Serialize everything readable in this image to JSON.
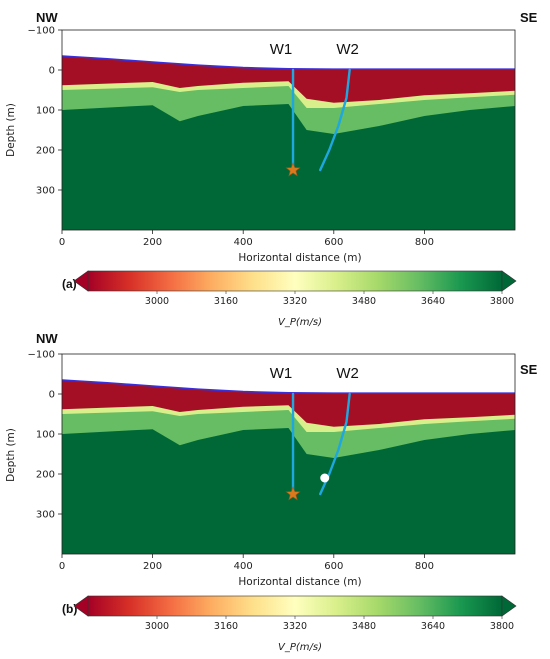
{
  "colors": {
    "low_velocity": "#a50f26",
    "transition": "#d9ef8b",
    "mid_green": "#66bd63",
    "high_green": "#1a9850",
    "deep_green": "#006837",
    "well_line": "#1ea8e0",
    "star": "#d97a1e",
    "topography": "#3a2fd8"
  },
  "chart_data": [
    {
      "type": "heatmap",
      "panel_label": "(a)",
      "corner_left": "NW",
      "corner_right": "SE",
      "xlabel": "Horizontal distance (m)",
      "ylabel": "Depth (m)",
      "xlim": [
        0,
        1000
      ],
      "ylim": [
        -100,
        400
      ],
      "y_inverted": true,
      "x_ticks": [
        "0",
        "200",
        "400",
        "600",
        "800"
      ],
      "y_ticks": [
        "−100",
        "0",
        "100",
        "200",
        "300"
      ],
      "wells": [
        {
          "name": "W1",
          "path": [
            [
              510,
              0
            ],
            [
              510,
              250
            ]
          ],
          "marker": "star",
          "marker_at": [
            510,
            250
          ]
        },
        {
          "name": "W2",
          "path": [
            [
              635,
              0
            ],
            [
              628,
              70
            ],
            [
              610,
              140
            ],
            [
              590,
              200
            ],
            [
              570,
              250
            ]
          ]
        }
      ],
      "extra_points": [],
      "topography": [
        [
          0,
          -35
        ],
        [
          100,
          -28
        ],
        [
          200,
          -20
        ],
        [
          300,
          -12
        ],
        [
          400,
          -6
        ],
        [
          500,
          -3
        ],
        [
          600,
          -2
        ],
        [
          700,
          -2
        ],
        [
          800,
          -2
        ],
        [
          900,
          -2
        ],
        [
          1000,
          -2
        ]
      ],
      "layers": [
        {
          "name": "low-velocity zone",
          "color": "low_velocity",
          "bottom": [
            [
              0,
              38
            ],
            [
              200,
              30
            ],
            [
              260,
              45
            ],
            [
              300,
              40
            ],
            [
              400,
              32
            ],
            [
              500,
              28
            ],
            [
              540,
              72
            ],
            [
              600,
              82
            ],
            [
              700,
              75
            ],
            [
              800,
              63
            ],
            [
              900,
              58
            ],
            [
              1000,
              52
            ]
          ]
        },
        {
          "name": "transition",
          "color": "transition",
          "bottom": [
            [
              0,
              50
            ],
            [
              200,
              43
            ],
            [
              260,
              55
            ],
            [
              300,
              50
            ],
            [
              400,
              45
            ],
            [
              500,
              40
            ],
            [
              540,
              95
            ],
            [
              600,
              95
            ],
            [
              700,
              85
            ],
            [
              800,
              75
            ],
            [
              900,
              68
            ],
            [
              1000,
              62
            ]
          ]
        },
        {
          "name": "mid",
          "color": "mid_green",
          "bottom": [
            [
              0,
              100
            ],
            [
              200,
              88
            ],
            [
              260,
              128
            ],
            [
              300,
              115
            ],
            [
              400,
              90
            ],
            [
              500,
              85
            ],
            [
              540,
              150
            ],
            [
              600,
              160
            ],
            [
              700,
              140
            ],
            [
              800,
              115
            ],
            [
              900,
              100
            ],
            [
              1000,
              90
            ]
          ]
        },
        {
          "name": "deep",
          "color": "deep_green",
          "bottom": [
            [
              0,
              400
            ],
            [
              1000,
              400
            ]
          ]
        }
      ],
      "colorbar": {
        "ticks": [
          3000,
          3160,
          3320,
          3480,
          3640,
          3800
        ],
        "range": [
          2840,
          3800
        ],
        "label": "V_P(m/s)",
        "colormap": [
          "#a50026",
          "#d73027",
          "#f46d43",
          "#fdae61",
          "#fee08b",
          "#ffffbf",
          "#d9ef8b",
          "#a6d96a",
          "#66bd63",
          "#1a9850",
          "#006837"
        ]
      }
    },
    {
      "type": "heatmap",
      "panel_label": "(b)",
      "corner_left": "NW",
      "corner_right": "SE",
      "xlabel": "Horizontal distance (m)",
      "ylabel": "Depth (m)",
      "xlim": [
        0,
        1000
      ],
      "ylim": [
        -100,
        400
      ],
      "y_inverted": true,
      "x_ticks": [
        "0",
        "200",
        "400",
        "600",
        "800"
      ],
      "y_ticks": [
        "−100",
        "0",
        "100",
        "200",
        "300"
      ],
      "wells": [
        {
          "name": "W1",
          "path": [
            [
              510,
              0
            ],
            [
              510,
              250
            ]
          ],
          "marker": "star",
          "marker_at": [
            510,
            250
          ]
        },
        {
          "name": "W2",
          "path": [
            [
              635,
              0
            ],
            [
              628,
              70
            ],
            [
              610,
              140
            ],
            [
              590,
              200
            ],
            [
              570,
              250
            ]
          ]
        }
      ],
      "extra_points": [
        [
          580,
          210
        ]
      ],
      "topography": [
        [
          0,
          -35
        ],
        [
          100,
          -28
        ],
        [
          200,
          -20
        ],
        [
          300,
          -12
        ],
        [
          400,
          -6
        ],
        [
          500,
          -3
        ],
        [
          600,
          -2
        ],
        [
          700,
          -2
        ],
        [
          800,
          -2
        ],
        [
          900,
          -2
        ],
        [
          1000,
          -2
        ]
      ],
      "layers": [
        {
          "name": "low-velocity zone",
          "color": "low_velocity",
          "bottom": [
            [
              0,
              38
            ],
            [
              200,
              30
            ],
            [
              260,
              45
            ],
            [
              300,
              40
            ],
            [
              400,
              32
            ],
            [
              500,
              28
            ],
            [
              540,
              72
            ],
            [
              600,
              82
            ],
            [
              700,
              75
            ],
            [
              800,
              63
            ],
            [
              900,
              58
            ],
            [
              1000,
              52
            ]
          ]
        },
        {
          "name": "transition",
          "color": "transition",
          "bottom": [
            [
              0,
              50
            ],
            [
              200,
              43
            ],
            [
              260,
              55
            ],
            [
              300,
              50
            ],
            [
              400,
              45
            ],
            [
              500,
              40
            ],
            [
              540,
              95
            ],
            [
              600,
              95
            ],
            [
              700,
              85
            ],
            [
              800,
              75
            ],
            [
              900,
              68
            ],
            [
              1000,
              62
            ]
          ]
        },
        {
          "name": "mid",
          "color": "mid_green",
          "bottom": [
            [
              0,
              100
            ],
            [
              200,
              88
            ],
            [
              260,
              128
            ],
            [
              300,
              115
            ],
            [
              400,
              90
            ],
            [
              500,
              85
            ],
            [
              540,
              150
            ],
            [
              600,
              160
            ],
            [
              700,
              140
            ],
            [
              800,
              115
            ],
            [
              900,
              100
            ],
            [
              1000,
              90
            ]
          ]
        },
        {
          "name": "deep",
          "color": "deep_green",
          "bottom": [
            [
              0,
              400
            ],
            [
              1000,
              400
            ]
          ]
        }
      ],
      "colorbar": {
        "ticks": [
          3000,
          3160,
          3320,
          3480,
          3640,
          3800
        ],
        "range": [
          2840,
          3800
        ],
        "label": "V_P(m/s)",
        "colormap": [
          "#a50026",
          "#d73027",
          "#f46d43",
          "#fdae61",
          "#fee08b",
          "#ffffbf",
          "#d9ef8b",
          "#a6d96a",
          "#66bd63",
          "#1a9850",
          "#006837"
        ]
      }
    }
  ]
}
